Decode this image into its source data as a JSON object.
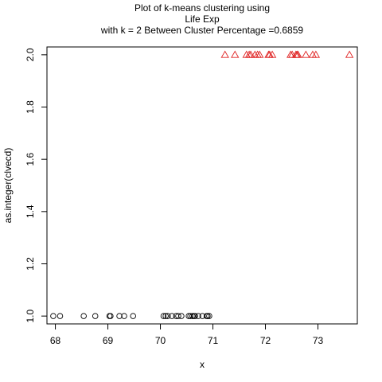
{
  "chart_data": {
    "type": "scatter",
    "title_lines": [
      "Plot of k-means clustering using",
      "Life Exp",
      "with  k = 2 Between Cluster Percentage =0.6859"
    ],
    "xlabel": "x",
    "ylabel": "as.integer(clvecd)",
    "xlim": [
      67.84,
      73.75
    ],
    "ylim": [
      0.97,
      2.03
    ],
    "x_ticks": [
      68,
      69,
      70,
      71,
      72,
      73
    ],
    "y_ticks": [
      1.0,
      1.2,
      1.4,
      1.6,
      1.8,
      2.0
    ],
    "y_tick_labels": [
      "1.0",
      "1.2",
      "1.4",
      "1.6",
      "1.8",
      "2.0"
    ],
    "grid": false,
    "legend": "none",
    "series": [
      {
        "marker": "circle",
        "color": "#000000",
        "y": 1,
        "x": [
          67.96,
          68.09,
          68.54,
          68.76,
          69.03,
          69.05,
          69.22,
          69.31,
          69.48,
          70.06,
          70.1,
          70.14,
          70.22,
          70.3,
          70.34,
          70.4,
          70.54,
          70.57,
          70.61,
          70.64,
          70.66,
          70.72,
          70.8,
          70.88,
          70.9,
          70.93
        ]
      },
      {
        "marker": "triangle",
        "color": "#df2020",
        "y": 2,
        "x": [
          71.23,
          71.42,
          71.64,
          71.69,
          71.72,
          71.8,
          71.85,
          71.89,
          72.06,
          72.08,
          72.13,
          72.48,
          72.51,
          72.58,
          72.6,
          72.62,
          72.77,
          72.9,
          72.96,
          73.6
        ]
      }
    ]
  }
}
